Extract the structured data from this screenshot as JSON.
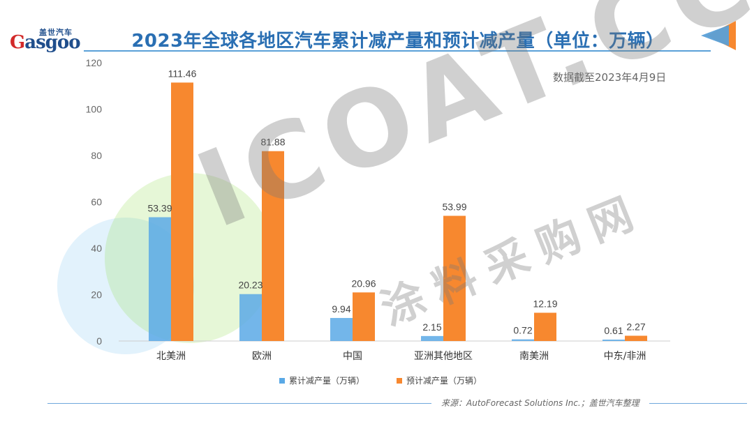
{
  "header": {
    "title": "2023年全球各地区汽车累计减产量和预计减产量（单位：万辆）",
    "logo_cn": "盖世汽车",
    "logo_word_g": "G",
    "logo_word_rest": "asgoo",
    "note": "数据截至2023年4月9日"
  },
  "footer": {
    "source": "来源：AutoForecast Solutions Inc.；盖世汽车整理"
  },
  "watermark": {
    "main": "ICOAT.CC",
    "sub": "涂料采购网"
  },
  "colors": {
    "series1": "#5aa9e6",
    "series2": "#f7882f",
    "title": "#2a6fb3",
    "axis": "#cccccc"
  },
  "chart_data": {
    "type": "bar",
    "title": "2023年全球各地区汽车累计减产量和预计减产量（单位：万辆）",
    "categories": [
      "北美洲",
      "欧洲",
      "中国",
      "亚洲其他地区",
      "南美洲",
      "中东/非洲"
    ],
    "series": [
      {
        "name": "累计减产量（万辆）",
        "values": [
          53.39,
          20.23,
          9.94,
          2.15,
          0.72,
          0.61
        ]
      },
      {
        "name": "预计减产量（万辆）",
        "values": [
          111.46,
          81.88,
          20.96,
          53.99,
          12.19,
          2.27
        ]
      }
    ],
    "ylim": [
      0,
      120
    ],
    "yticks": [
      0,
      20,
      40,
      60,
      80,
      100,
      120
    ],
    "grid": false,
    "legend": "bottom"
  }
}
